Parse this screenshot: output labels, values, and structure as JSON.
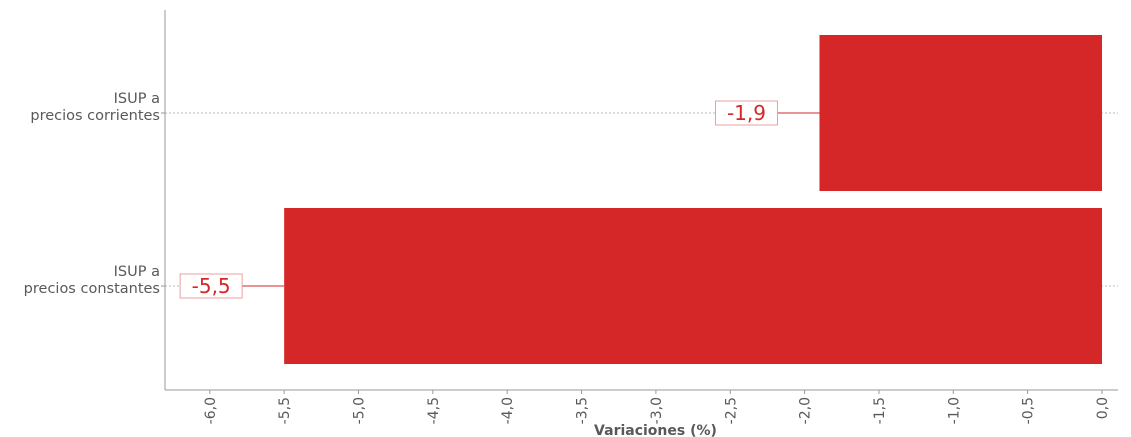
{
  "chart_data": {
    "type": "bar",
    "orientation": "horizontal",
    "categories": [
      [
        "ISUP a",
        "precios corrientes"
      ],
      [
        "ISUP a",
        "precios constantes"
      ]
    ],
    "values": [
      -1.9,
      -5.5
    ],
    "data_labels": [
      "-1,9",
      "-5,5"
    ],
    "xlabel": "Variaciones (%)",
    "ylabel": "",
    "xlim": [
      -6.0,
      0.0
    ],
    "xticks": [
      -6.0,
      -5.5,
      -5.0,
      -4.5,
      -4.0,
      -3.5,
      -3.0,
      -2.5,
      -2.0,
      -1.5,
      -1.0,
      -0.5,
      0.0
    ],
    "xtick_labels": [
      "-6,0",
      "-5,5",
      "-5,0",
      "-4,5",
      "-4,0",
      "-3,5",
      "-3,0",
      "-2,5",
      "-2,0",
      "-1,5",
      "-1,0",
      "-0,5",
      "0,0"
    ],
    "grid": "horizontal dotted at categories",
    "legend": "none",
    "colors": {
      "bar": "#d62728",
      "label_text": "#d62728",
      "axis": "#999999",
      "text": "#595959",
      "grid": "#bbbbbb"
    }
  }
}
